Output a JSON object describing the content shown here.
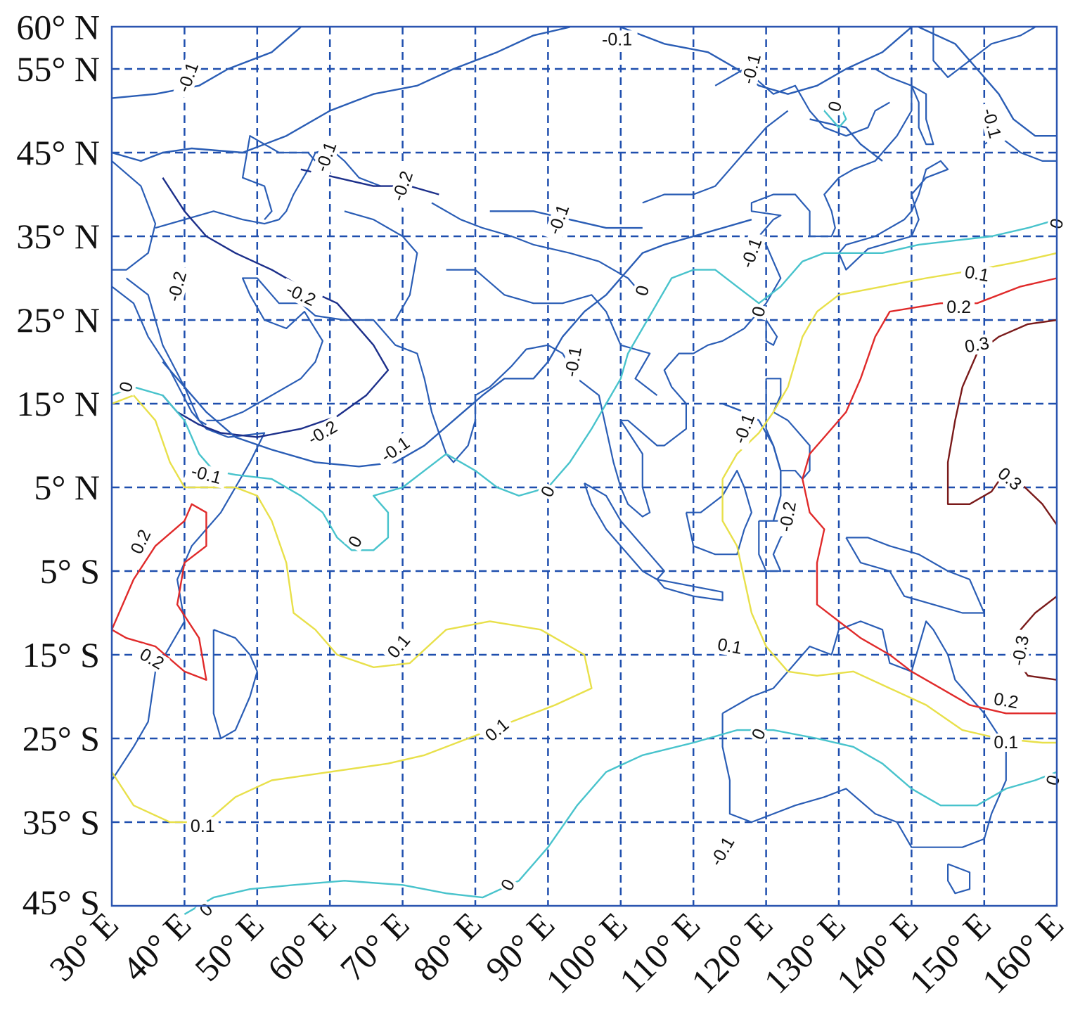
{
  "y_axis_labels": [
    "60° N",
    "55° N",
    "45° N",
    "35° N",
    "25° N",
    "15° N",
    "5° N",
    "5° S",
    "15° S",
    "25° S",
    "35° S",
    "45° S"
  ],
  "x_axis_labels": [
    "30° E",
    "40° E",
    "50° E",
    "60° E",
    "70° E",
    "80° E",
    "90° E",
    "100° E",
    "110° E",
    "120° E",
    "130° E",
    "140° E",
    "150° E",
    "160° E"
  ],
  "contour_colors": {
    "-0.2": "#1c2f8a",
    "-0.1": "#2a5db5",
    "0": "#48c3cc",
    "0.1": "#e8e04a",
    "0.2": "#e02a2a",
    "0.3": "#7a1a1a"
  },
  "contour_labels": [
    {
      "text": "-0.1",
      "lon": 40.5,
      "lat": 54,
      "rot": -70
    },
    {
      "text": "-0.1",
      "lon": 99.5,
      "lat": 58.5,
      "rot": 0
    },
    {
      "text": "-0.1",
      "lon": 118,
      "lat": 55,
      "rot": -75
    },
    {
      "text": "0",
      "lon": 129.5,
      "lat": 50.5,
      "rot": -75
    },
    {
      "text": "-0.1",
      "lon": 151,
      "lat": 48.5,
      "rot": 75
    },
    {
      "text": "-0.1",
      "lon": 59.5,
      "lat": 44.5,
      "rot": -70
    },
    {
      "text": "-0.2",
      "lon": 70,
      "lat": 41,
      "rot": -70
    },
    {
      "text": "-0.1",
      "lon": 91.5,
      "lat": 37,
      "rot": -70
    },
    {
      "text": "-0.2",
      "lon": 39,
      "lat": 29,
      "rot": -75
    },
    {
      "text": "-0.2",
      "lon": 56,
      "lat": 28,
      "rot": 25
    },
    {
      "text": "-0.1",
      "lon": 118,
      "lat": 33,
      "rot": -70
    },
    {
      "text": "0",
      "lon": 103,
      "lat": 28.5,
      "rot": -75
    },
    {
      "text": "0",
      "lon": 119,
      "lat": 26,
      "rot": -75
    },
    {
      "text": "-0.1",
      "lon": 93.5,
      "lat": 20,
      "rot": -80
    },
    {
      "text": "0",
      "lon": 32,
      "lat": 17,
      "rot": -75
    },
    {
      "text": "-0.2",
      "lon": 59,
      "lat": 11.5,
      "rot": -30
    },
    {
      "text": "-0.1",
      "lon": 69,
      "lat": 9.5,
      "rot": -35
    },
    {
      "text": "-0.1",
      "lon": 117,
      "lat": 12,
      "rot": -70
    },
    {
      "text": "-0.1",
      "lon": 43,
      "lat": 6.5,
      "rot": 15
    },
    {
      "text": "0",
      "lon": 90,
      "lat": 4.5,
      "rot": -65
    },
    {
      "text": "-0.2",
      "lon": 123,
      "lat": 1.5,
      "rot": -80
    },
    {
      "text": "0",
      "lon": 63.5,
      "lat": -1.5,
      "rot": -60
    },
    {
      "text": "0.2",
      "lon": 34,
      "lat": -1.5,
      "rot": -65
    },
    {
      "text": "0.1",
      "lon": 69.5,
      "lat": -14,
      "rot": -50
    },
    {
      "text": "0.2",
      "lon": 35.5,
      "lat": -15.5,
      "rot": 30
    },
    {
      "text": "0.1",
      "lon": 115,
      "lat": -14,
      "rot": 10
    },
    {
      "text": "0.1",
      "lon": 83,
      "lat": -24,
      "rot": -40
    },
    {
      "text": "0",
      "lon": 119,
      "lat": -24.5,
      "rot": -65
    },
    {
      "text": "0.2",
      "lon": 153,
      "lat": -20.5,
      "rot": 10
    },
    {
      "text": "0.1",
      "lon": 153,
      "lat": -25.5,
      "rot": 0
    },
    {
      "text": "0",
      "lon": 159.5,
      "lat": -30,
      "rot": -75
    },
    {
      "text": "0.1",
      "lon": 42.5,
      "lat": -35.5,
      "rot": 0
    },
    {
      "text": "-0.1",
      "lon": 114,
      "lat": -38.5,
      "rot": -60
    },
    {
      "text": "0",
      "lon": 84.5,
      "lat": -42.5,
      "rot": -60
    },
    {
      "text": "0",
      "lon": 43,
      "lat": -45.5,
      "rot": -45
    },
    {
      "text": "0",
      "lon": 160,
      "lat": 36.5,
      "rot": -75
    },
    {
      "text": "0.1",
      "lon": 149,
      "lat": 30.5,
      "rot": 10
    },
    {
      "text": "0.2",
      "lon": 146.5,
      "lat": 26.5,
      "rot": 0
    },
    {
      "text": "0.3",
      "lon": 149,
      "lat": 22,
      "rot": -10
    },
    {
      "text": "0.3",
      "lon": 153.5,
      "lat": 6,
      "rot": 40
    },
    {
      "text": "-0.3",
      "lon": 155,
      "lat": -14.5,
      "rot": -80
    }
  ]
}
